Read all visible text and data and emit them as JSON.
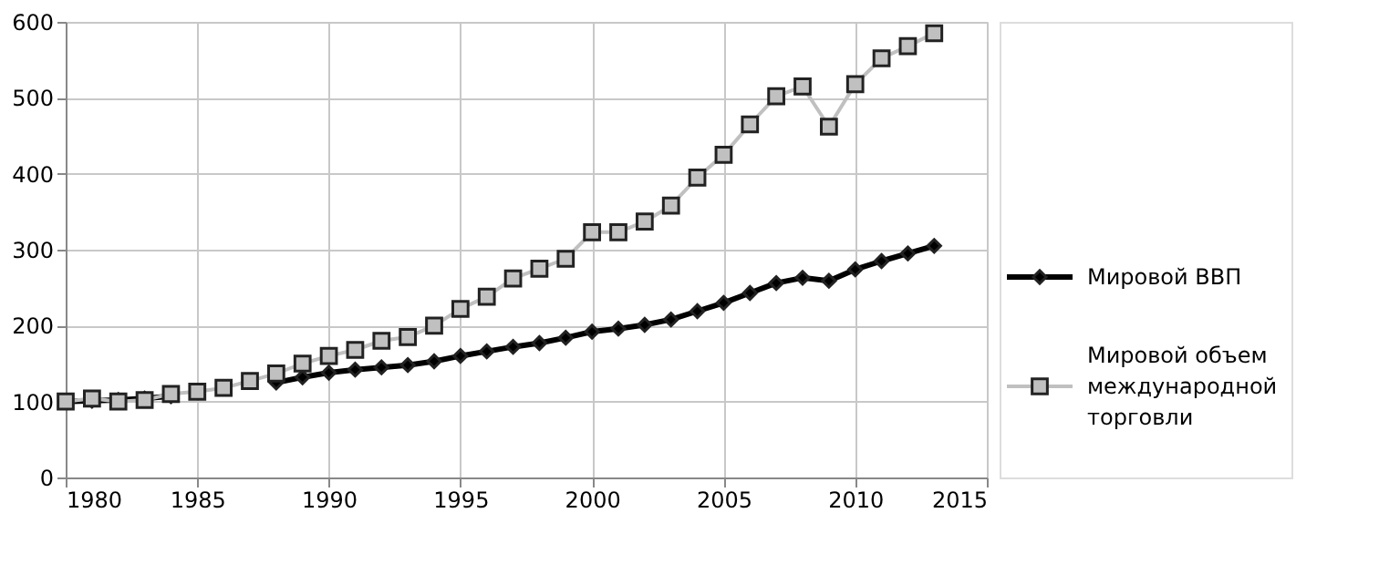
{
  "chart_data": {
    "type": "line",
    "x": [
      1980,
      1981,
      1982,
      1983,
      1984,
      1985,
      1986,
      1987,
      1988,
      1989,
      1990,
      1991,
      1992,
      1993,
      1994,
      1995,
      1996,
      1997,
      1998,
      1999,
      2000,
      2001,
      2002,
      2003,
      2004,
      2005,
      2006,
      2007,
      2008,
      2009,
      2010,
      2011,
      2012,
      2013
    ],
    "series": [
      {
        "name": "Мировой ВВП",
        "color": "#000000",
        "marker": "diamond",
        "line_style": "solid",
        "values": [
          100,
          101,
          102,
          104,
          107,
          null,
          null,
          null,
          125,
          132,
          138,
          142,
          145,
          148,
          153,
          160,
          166,
          172,
          177,
          184,
          192,
          196,
          201,
          208,
          219,
          230,
          243,
          256,
          263,
          259,
          274,
          285,
          295,
          305
        ]
      },
      {
        "name": "Мировой объем международной торговли",
        "color": "#c0c0c0",
        "marker": "square",
        "line_style": "solid",
        "values": [
          100,
          104,
          100,
          102,
          110,
          113,
          118,
          127,
          137,
          150,
          160,
          168,
          180,
          185,
          200,
          222,
          238,
          262,
          275,
          288,
          323,
          323,
          337,
          358,
          395,
          425,
          465,
          502,
          515,
          462,
          518,
          552,
          568,
          585
        ]
      }
    ],
    "xlim": [
      1980,
      2015
    ],
    "xticks": [
      1980,
      1985,
      1990,
      1995,
      2000,
      2005,
      2010,
      2015
    ],
    "ylim": [
      0,
      600
    ],
    "yticks": [
      0,
      100,
      200,
      300,
      400,
      500,
      600
    ],
    "grid": true,
    "legend": "right"
  }
}
